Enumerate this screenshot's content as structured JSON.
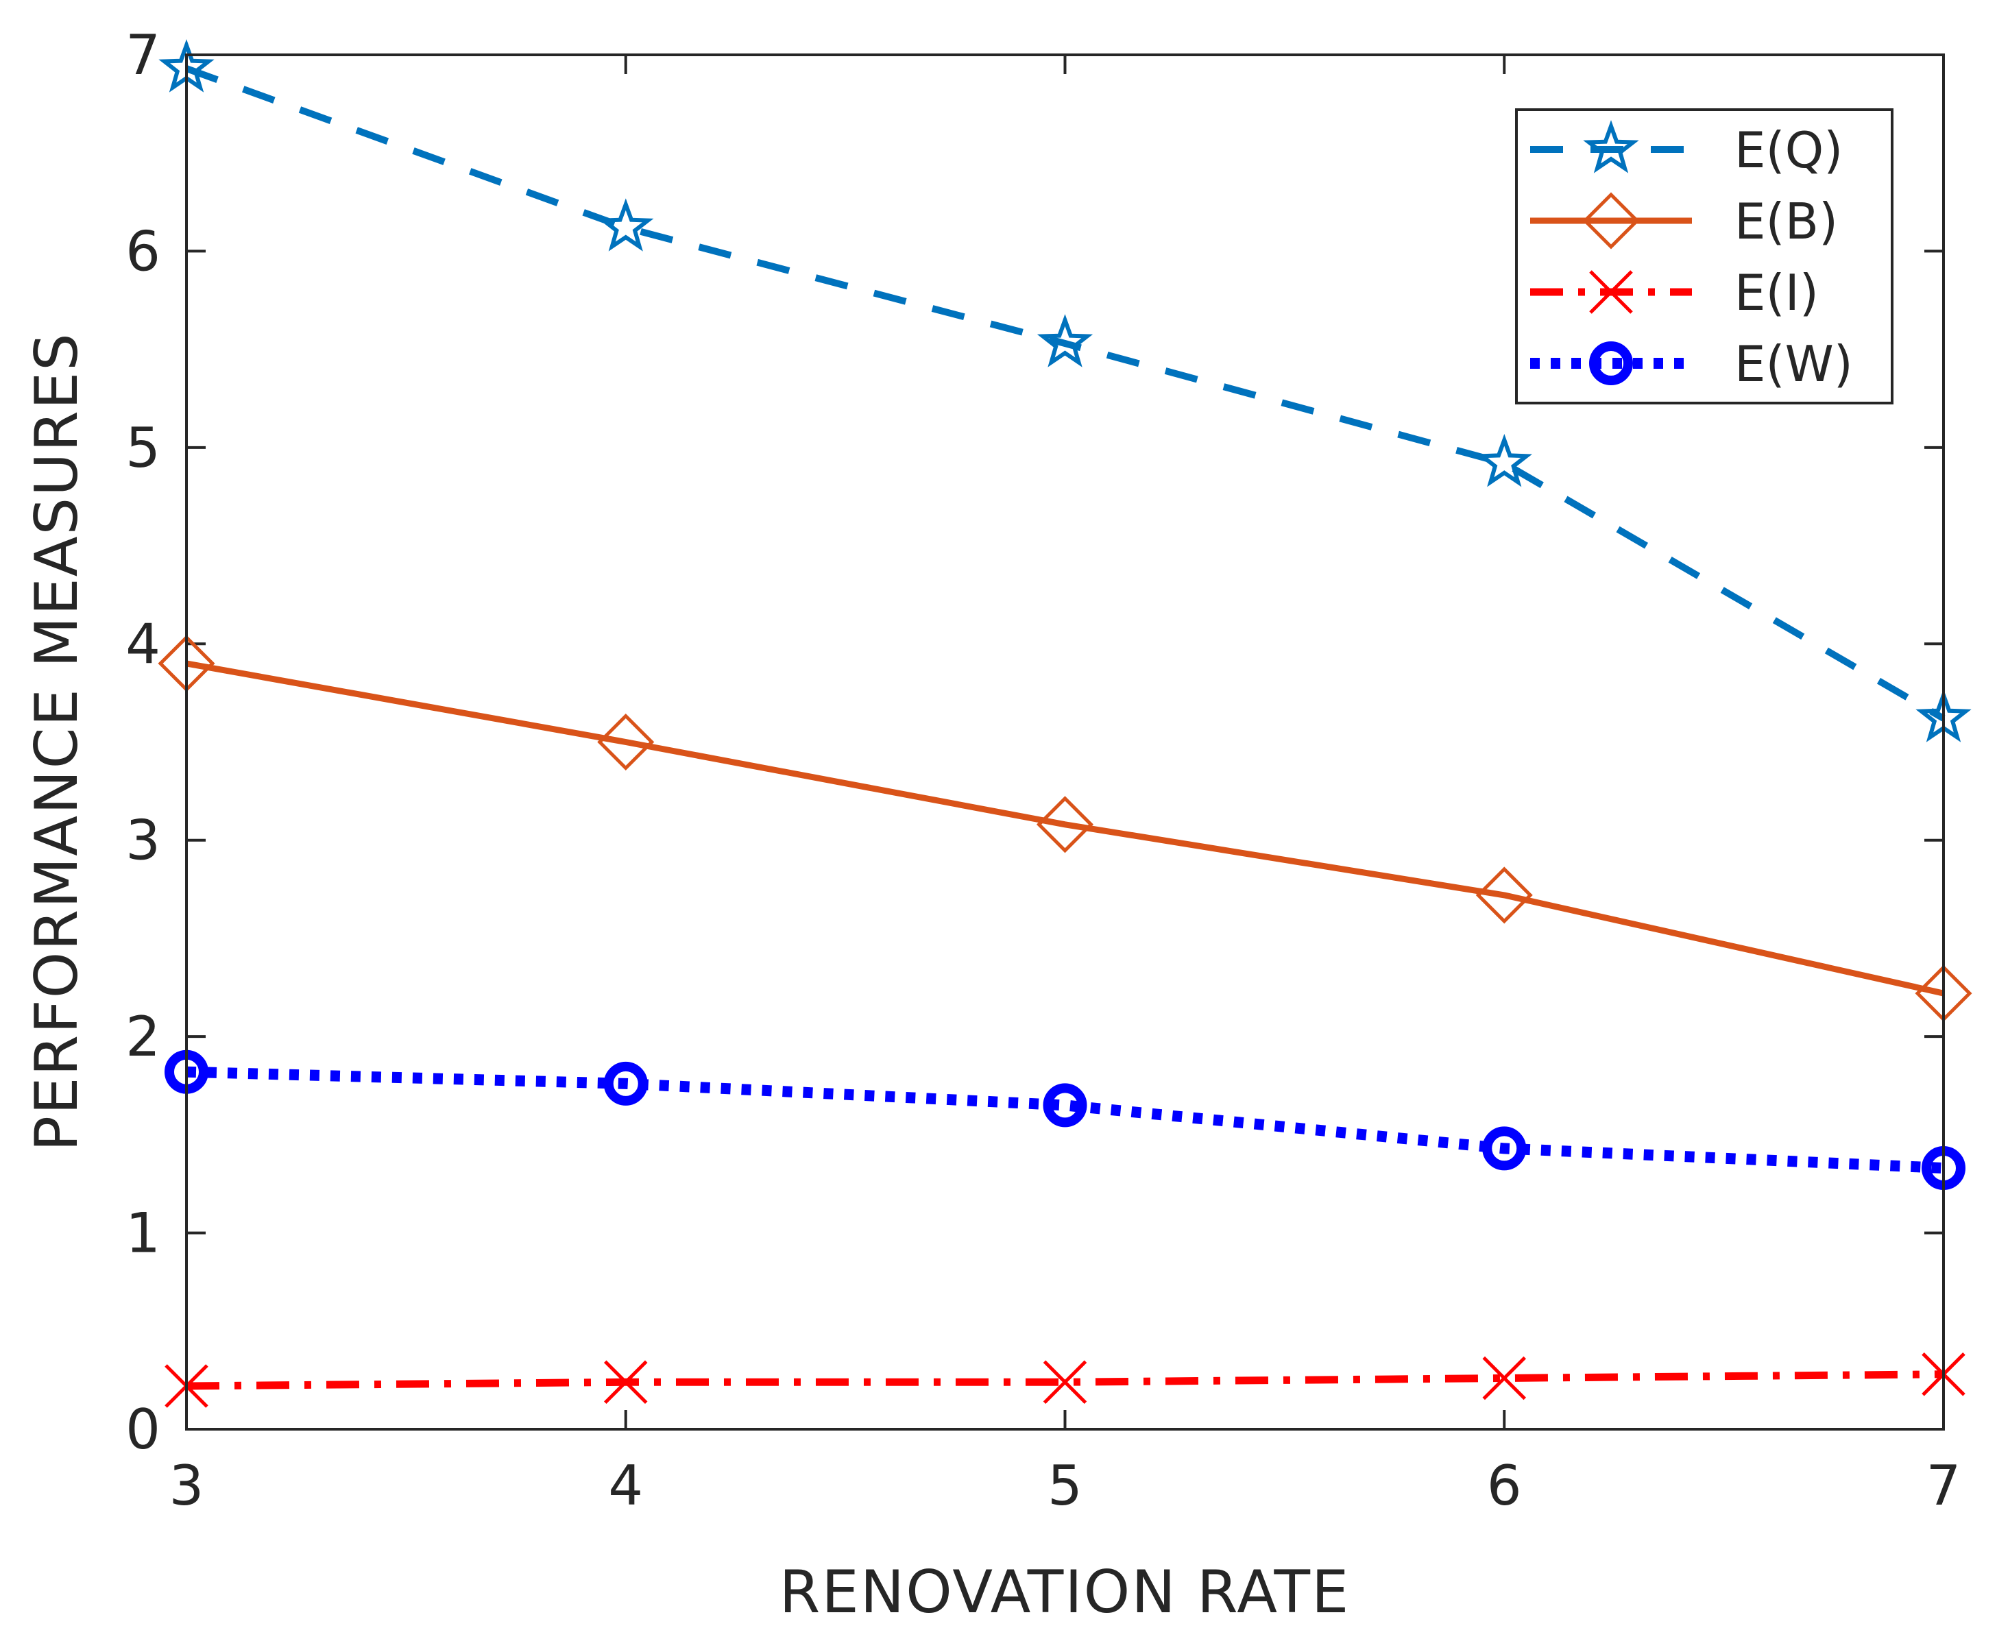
{
  "chart_data": {
    "type": "line",
    "title": "",
    "xlabel": "RENOVATION RATE",
    "ylabel": "PERFORMANCE MEASURES",
    "x": [
      3,
      4,
      5,
      6,
      7
    ],
    "xlim": [
      3,
      7
    ],
    "ylim": [
      0,
      7
    ],
    "xticks": [
      "3",
      "4",
      "5",
      "6",
      "7"
    ],
    "yticks": [
      "0",
      "1",
      "2",
      "3",
      "4",
      "5",
      "6",
      "7"
    ],
    "grid": false,
    "legend_position": "top-right",
    "series": [
      {
        "name": "E(Q)",
        "values": [
          6.93,
          6.12,
          5.53,
          4.92,
          3.62
        ],
        "color": "#0072BD",
        "line": "dashed",
        "marker": "star"
      },
      {
        "name": "E(B)",
        "values": [
          3.9,
          3.5,
          3.08,
          2.72,
          2.22
        ],
        "color": "#D95319",
        "line": "solid",
        "marker": "diamond"
      },
      {
        "name": "E(I)",
        "values": [
          0.22,
          0.24,
          0.24,
          0.26,
          0.28
        ],
        "color": "#FF0000",
        "line": "dashdot",
        "marker": "x"
      },
      {
        "name": "E(W)",
        "values": [
          1.82,
          1.76,
          1.65,
          1.43,
          1.33
        ],
        "color": "#0000FF",
        "line": "dotted",
        "marker": "circle"
      }
    ]
  }
}
